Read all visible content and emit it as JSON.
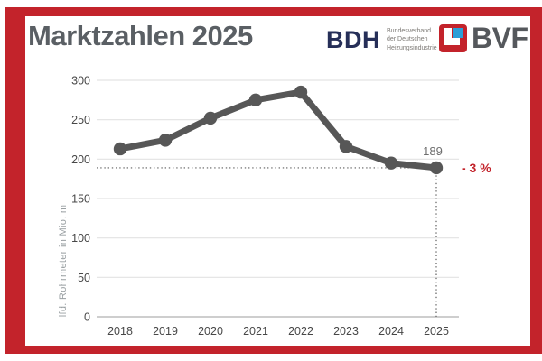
{
  "header": {
    "title": "Marktzahlen 2025",
    "logos": {
      "bdh": {
        "abbr": "BDH",
        "lines": [
          "Bundesverband",
          "der Deutschen",
          "Heizungsindustrie"
        ]
      },
      "bvf": {
        "abbr": "BVF"
      }
    }
  },
  "colors": {
    "frame_red": "#c3232b",
    "accent_red": "#c3232b",
    "title_gray": "#5a5f64",
    "line_gray": "#575757",
    "tick_label": "#474747",
    "axis_title_gray": "#9aa0a3",
    "grid_line": "#e3e3e3",
    "axis_line": "#b0b0b0",
    "annotation_gray": "#6e6e6e",
    "dotted_line": "#5f5f5f",
    "bdh_navy": "#262f58",
    "bdh_subtext": "#7d7a76",
    "bvf_blue": "#2b9fd8",
    "bvf_text": "#55585c"
  },
  "chart_data": {
    "type": "line",
    "title": "Marktzahlen 2025",
    "categories": [
      "2018",
      "2019",
      "2020",
      "2021",
      "2022",
      "2023",
      "2024",
      "2025"
    ],
    "values": [
      213,
      224,
      252,
      275,
      285,
      216,
      195,
      189
    ],
    "xlabel": "",
    "ylabel": "lfd. Rohrmeter in Mio. m",
    "ylim": [
      0,
      300
    ],
    "ytick_step": 50,
    "grid": true,
    "legend": false,
    "annotations": {
      "last_value_label": "189",
      "change_label": "- 3 %"
    }
  }
}
